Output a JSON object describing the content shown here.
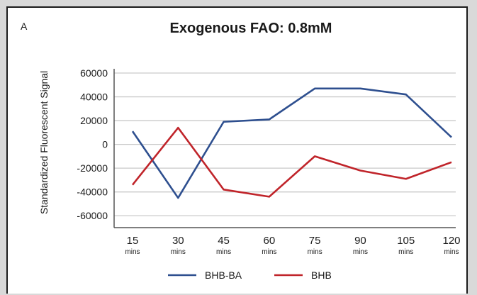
{
  "chart_data": {
    "type": "line",
    "panel_label": "A",
    "title": "Exogenous FAO: 0.8mM",
    "xlabel": "",
    "ylabel": "Standardized Fluorescent Signal",
    "categories": [
      "15",
      "30",
      "45",
      "60",
      "75",
      "90",
      "105",
      "120"
    ],
    "category_unit": "mins",
    "ylim": [
      -70000,
      60000
    ],
    "yticks": [
      60000,
      40000,
      20000,
      0,
      -20000,
      -40000,
      -60000
    ],
    "ytick_labels": [
      "60000",
      "40000",
      "20000",
      "0",
      "-20000",
      "-40000",
      "-60000"
    ],
    "grid": true,
    "legend_position": "bottom",
    "series": [
      {
        "name": "BHB-BA",
        "color": "#2e4f8f",
        "values": [
          11000,
          -45000,
          19000,
          21000,
          47000,
          47000,
          42000,
          6000
        ]
      },
      {
        "name": "BHB",
        "color": "#c0242a",
        "values": [
          -34000,
          14000,
          -38000,
          -44000,
          -10000,
          -22000,
          -29000,
          -15000
        ]
      }
    ]
  }
}
